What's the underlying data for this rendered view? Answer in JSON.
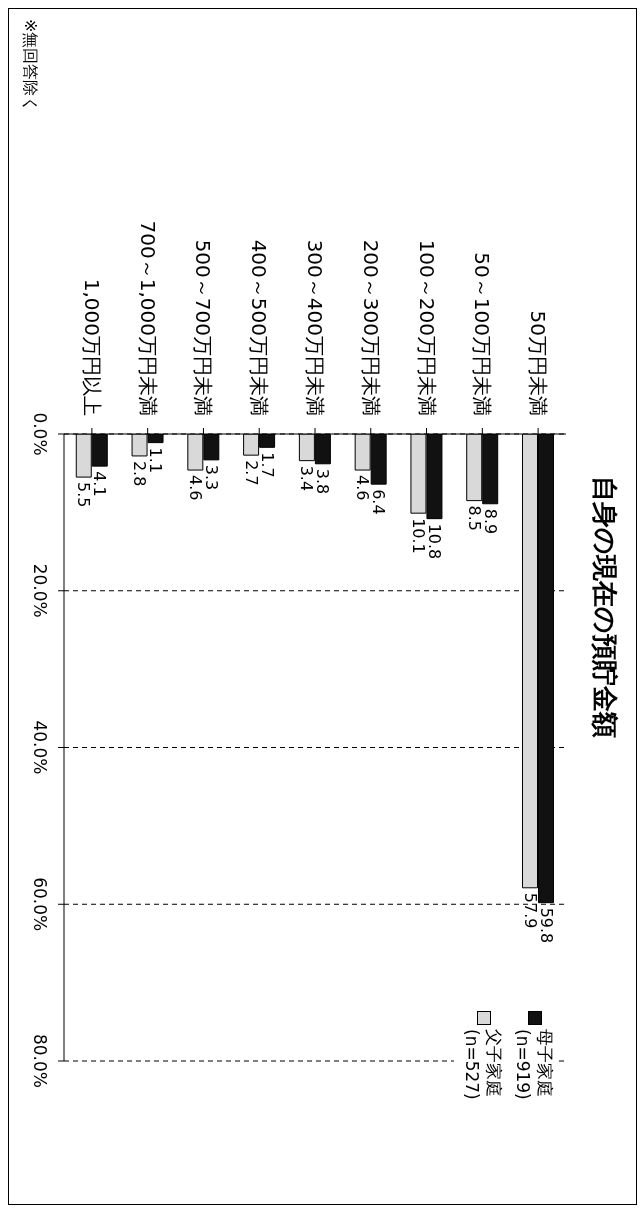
{
  "chart_data": {
    "type": "bar",
    "title": "自身の現在の預貯金額",
    "categories": [
      "1,000万円以上",
      "700～1,000万円未満",
      "500～700万円未満",
      "400～500万円未満",
      "300～400万円未満",
      "200～300万円未満",
      "100～200万円未満",
      "50～100万円未満",
      "50万円未満"
    ],
    "series": [
      {
        "name": "父子家庭 (n=527)",
        "color": "#d9d9d9",
        "values": [
          5.5,
          2.8,
          4.6,
          2.7,
          3.4,
          4.6,
          10.1,
          8.5,
          57.9
        ]
      },
      {
        "name": "母子家庭 (n=919)",
        "color": "#111111",
        "values": [
          4.1,
          1.1,
          3.3,
          1.7,
          3.8,
          6.4,
          10.8,
          8.9,
          59.8
        ]
      }
    ],
    "ylim": [
      80,
      0
    ],
    "yticks": [
      {
        "value": 0,
        "label": "0.0%"
      },
      {
        "value": 20,
        "label": "20.0%"
      },
      {
        "value": 40,
        "label": "40.0%"
      },
      {
        "value": 60,
        "label": "60.0%"
      },
      {
        "value": 80,
        "label": "80.0%"
      }
    ],
    "grid": "y",
    "legend": "bottom right",
    "data_labels": true,
    "annotations": [
      "※無回答除く"
    ]
  }
}
